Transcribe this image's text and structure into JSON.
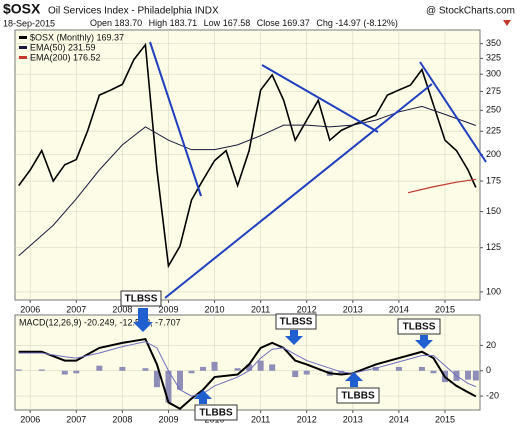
{
  "header": {
    "symbol": "$OSX",
    "name": "Oil Services Index - Philadelphia INDX",
    "source": "@ StockCharts.com",
    "date": "18-Sep-2015",
    "stats": [
      {
        "label": "Open",
        "value": "183.70"
      },
      {
        "label": "High",
        "value": "183.71"
      },
      {
        "label": "Low",
        "value": "167.58"
      },
      {
        "label": "Close",
        "value": "169.37"
      },
      {
        "label": "Chg",
        "value": "-14.97 (-8.12%)"
      }
    ]
  },
  "annotations": [
    "TLBSS",
    "TLBSS",
    "TLBSS",
    "TLBBS",
    "TLBBS"
  ],
  "chart_data": [
    {
      "type": "line",
      "log_scale": true,
      "grid": true,
      "legend": "top-left",
      "xlim": [
        2005.67,
        2015.76
      ],
      "xticks": [
        2006,
        2007,
        2008,
        2009,
        2010,
        2011,
        2012,
        2013,
        2014,
        2015
      ],
      "ylim": [
        96,
        375
      ],
      "yticks": [
        100,
        125,
        150,
        175,
        200,
        225,
        250,
        275,
        300,
        325,
        350
      ],
      "series": [
        {
          "name": "$OSX (Monthly) 169.37",
          "color": "#000000",
          "width": 1.6,
          "x": [
            2005.75,
            2006.0,
            2006.25,
            2006.5,
            2006.75,
            2007.0,
            2007.25,
            2007.5,
            2007.75,
            2008.0,
            2008.25,
            2008.5,
            2008.75,
            2009.0,
            2009.25,
            2009.5,
            2009.75,
            2010.0,
            2010.25,
            2010.5,
            2010.75,
            2011.0,
            2011.25,
            2011.5,
            2011.75,
            2012.0,
            2012.25,
            2012.5,
            2012.75,
            2013.0,
            2013.25,
            2013.5,
            2013.75,
            2014.0,
            2014.25,
            2014.5,
            2014.75,
            2015.0,
            2015.25,
            2015.5,
            2015.67
          ],
          "values": [
            171,
            185,
            204,
            175,
            190,
            195,
            226,
            270,
            277,
            285,
            323,
            348,
            185,
            114,
            126,
            159,
            176,
            194,
            204,
            171,
            204,
            277,
            299,
            263,
            215,
            238,
            263,
            215,
            226,
            232,
            238,
            244,
            270,
            277,
            284,
            307,
            257,
            215,
            204,
            185,
            169.37
          ]
        },
        {
          "name": "EMA(50) 231.59",
          "color": "#1a1a40",
          "width": 1,
          "x": [
            2005.75,
            2006.5,
            2007.0,
            2007.5,
            2008.0,
            2008.5,
            2009.0,
            2009.5,
            2010.0,
            2010.5,
            2011.0,
            2011.5,
            2012.0,
            2012.5,
            2013.0,
            2013.5,
            2014.0,
            2014.5,
            2015.0,
            2015.67
          ],
          "values": [
            120,
            140,
            160,
            185,
            210,
            230,
            215,
            205,
            205,
            210,
            220,
            232,
            232,
            230,
            232,
            238,
            248,
            255,
            245,
            231.59
          ]
        },
        {
          "name": "EMA(200) 176.52",
          "color": "#c0392b",
          "width": 1.2,
          "x": [
            2014.2,
            2014.75,
            2015.25,
            2015.67
          ],
          "values": [
            165,
            170,
            174,
            176.52
          ]
        }
      ]
    },
    {
      "type": "line",
      "grid": true,
      "title": "MACD(12,26,9) -20.249, -12.542, -7.707",
      "xlim": [
        2005.67,
        2015.76
      ],
      "xticks": [
        2006,
        2007,
        2008,
        2009,
        2010,
        2011,
        2012,
        2013,
        2014,
        2015
      ],
      "ylim": [
        -31,
        44
      ],
      "yticks": [
        -20,
        0,
        20
      ],
      "series": [
        {
          "type": "bar",
          "color": "#8e8eb8",
          "x": [
            2005.75,
            2006.25,
            2006.75,
            2007.0,
            2007.5,
            2008.0,
            2008.5,
            2008.75,
            2009.0,
            2009.25,
            2009.5,
            2009.75,
            2010.0,
            2010.5,
            2010.75,
            2011.0,
            2011.25,
            2011.5,
            2011.75,
            2012.0,
            2012.5,
            2012.75,
            2013.0,
            2013.5,
            2014.0,
            2014.5,
            2014.75,
            2015.0,
            2015.25,
            2015.5,
            2015.67
          ],
          "values": [
            1,
            1,
            -3,
            -2,
            4,
            3,
            2,
            -13,
            -25,
            -15,
            -2,
            3,
            7,
            2,
            5,
            8,
            5,
            0,
            -5,
            -3,
            -4,
            -2,
            0,
            3,
            3,
            3,
            -2,
            -9,
            -8,
            -7,
            -7.707
          ]
        },
        {
          "color": "#000000",
          "width": 2,
          "x": [
            2005.75,
            2006.25,
            2006.75,
            2007.0,
            2007.5,
            2008.0,
            2008.5,
            2008.75,
            2009.0,
            2009.25,
            2009.5,
            2009.75,
            2010.0,
            2010.5,
            2010.75,
            2011.0,
            2011.25,
            2011.5,
            2011.75,
            2012.0,
            2012.5,
            2012.75,
            2013.0,
            2013.5,
            2014.0,
            2014.5,
            2014.75,
            2015.0,
            2015.25,
            2015.5,
            2015.67
          ],
          "values": [
            15,
            15,
            8,
            8,
            18,
            22,
            25,
            5,
            -25,
            -30,
            -22,
            -15,
            -5,
            -3,
            5,
            18,
            22,
            18,
            8,
            5,
            -2,
            -3,
            -2,
            5,
            10,
            15,
            10,
            -5,
            -12,
            -17,
            -20.249
          ]
        },
        {
          "color": "#7070c0",
          "width": 1,
          "x": [
            2005.75,
            2006.25,
            2006.75,
            2007.0,
            2007.5,
            2008.0,
            2008.5,
            2008.75,
            2009.0,
            2009.25,
            2009.5,
            2009.75,
            2010.0,
            2010.5,
            2010.75,
            2011.0,
            2011.25,
            2011.5,
            2011.75,
            2012.0,
            2012.5,
            2012.75,
            2013.0,
            2013.5,
            2014.0,
            2014.5,
            2014.75,
            2015.0,
            2015.25,
            2015.5,
            2015.67
          ],
          "values": [
            14,
            14,
            11,
            10,
            14,
            19,
            23,
            18,
            0,
            -15,
            -20,
            -18,
            -12,
            -5,
            0,
            10,
            17,
            18,
            13,
            8,
            2,
            -1,
            -2,
            2,
            7,
            12,
            12,
            4,
            -4,
            -10,
            -12.542
          ]
        }
      ]
    }
  ]
}
